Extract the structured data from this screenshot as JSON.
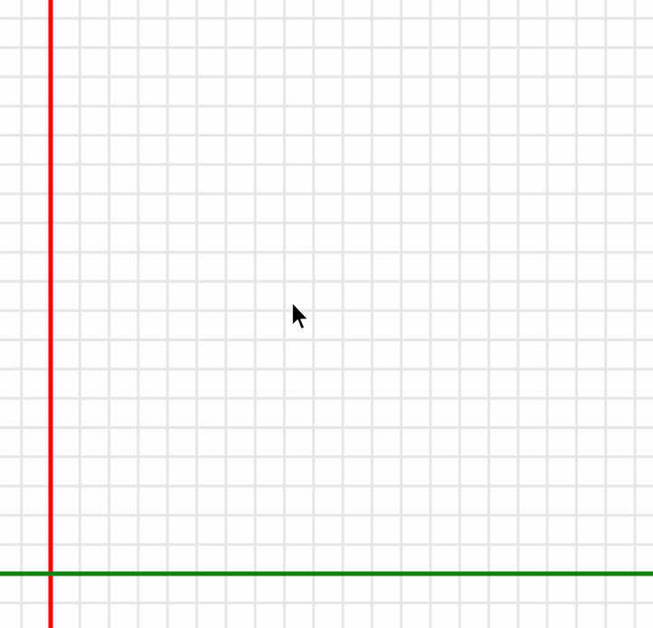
{
  "canvas": {
    "background_color": "#fdfdfd",
    "grid_line_color": "#e6e6e6",
    "grid": true,
    "x_axis_color": "#118011",
    "y_axis_color": "#ff0000"
  },
  "cursor": {
    "icon": "arrow-pointer-icon",
    "fill_color": "#000000",
    "outline_color": "#ffffff"
  }
}
